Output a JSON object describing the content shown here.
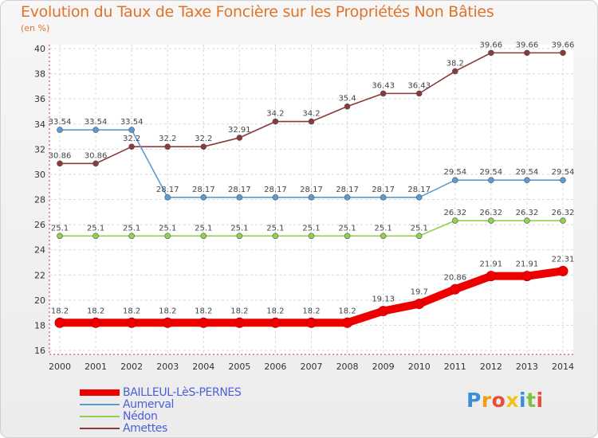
{
  "header": {
    "title": "Evolution du Taux de Taxe Foncière sur les Propriétés Non Bâties",
    "unit": "(en %)"
  },
  "chart_data": {
    "type": "line",
    "title": "Evolution du Taux de Taxe Foncière sur les Propriétés Non Bâties",
    "ylabel": "(en %)",
    "xlabel": "",
    "x": [
      "2000",
      "2001",
      "2002",
      "2003",
      "2004",
      "2005",
      "2006",
      "2007",
      "2008",
      "2009",
      "2010",
      "2011",
      "2012",
      "2013",
      "2014"
    ],
    "ylim": [
      16,
      40
    ],
    "yticks": [
      16,
      18,
      20,
      22,
      24,
      26,
      28,
      30,
      32,
      34,
      36,
      38,
      40
    ],
    "grid": true,
    "legend_position": "bottom-left",
    "series": [
      {
        "name": "BAILLEUL-LèS-PERNES",
        "color": "#ee0000",
        "values": [
          18.2,
          18.2,
          18.2,
          18.2,
          18.2,
          18.2,
          18.2,
          18.2,
          18.2,
          19.13,
          19.7,
          20.86,
          21.91,
          21.91,
          22.31
        ],
        "labels": [
          "18.2",
          "18.2",
          "18.2",
          "18.2",
          "18.2",
          "18.2",
          "18.2",
          "18.2",
          "18.2",
          "19.13",
          "19.7",
          "20.86",
          "21.91",
          "21.91",
          "22.31"
        ]
      },
      {
        "name": "Aumerval",
        "color": "#5b9bd5",
        "values": [
          33.54,
          33.54,
          33.54,
          28.17,
          28.17,
          28.17,
          28.17,
          28.17,
          28.17,
          28.17,
          28.17,
          29.54,
          29.54,
          29.54,
          29.54
        ],
        "labels": [
          "33.54",
          "33.54",
          "33.54",
          "28.17",
          "28.17",
          "28.17",
          "28.17",
          "28.17",
          "28.17",
          "28.17",
          "28.17",
          "29.54",
          "29.54",
          "29.54",
          "29.54"
        ]
      },
      {
        "name": "Nédon",
        "color": "#92d050",
        "values": [
          25.1,
          25.1,
          25.1,
          25.1,
          25.1,
          25.1,
          25.1,
          25.1,
          25.1,
          25.1,
          25.1,
          26.32,
          26.32,
          26.32,
          26.32
        ],
        "labels": [
          "25.1",
          "25.1",
          "25.1",
          "25.1",
          "25.1",
          "25.1",
          "25.1",
          "25.1",
          "25.1",
          "25.1",
          "25.1",
          "26.32",
          "26.32",
          "26.32",
          "26.32"
        ]
      },
      {
        "name": "Amettes",
        "color": "#8b3a3a",
        "values": [
          30.86,
          30.86,
          32.2,
          32.2,
          32.2,
          32.91,
          34.2,
          34.2,
          35.4,
          36.43,
          36.43,
          38.2,
          39.66,
          39.66,
          39.66
        ],
        "labels": [
          "30.86",
          "30.86",
          "32.2",
          "32.2",
          "32.2",
          "32.91",
          "34.2",
          "34.2",
          "35.4",
          "36.43",
          "36.43",
          "38.2",
          "39.66",
          "39.66",
          "39.66"
        ]
      }
    ]
  },
  "logo": {
    "letters": [
      "P",
      "r",
      "o",
      "x",
      "i",
      "t",
      "i"
    ],
    "colors": [
      "#3a8fd6",
      "#f39c12",
      "#e74c3c",
      "#f1c40f",
      "#3a8fd6",
      "#7dc242",
      "#e74c3c"
    ]
  }
}
